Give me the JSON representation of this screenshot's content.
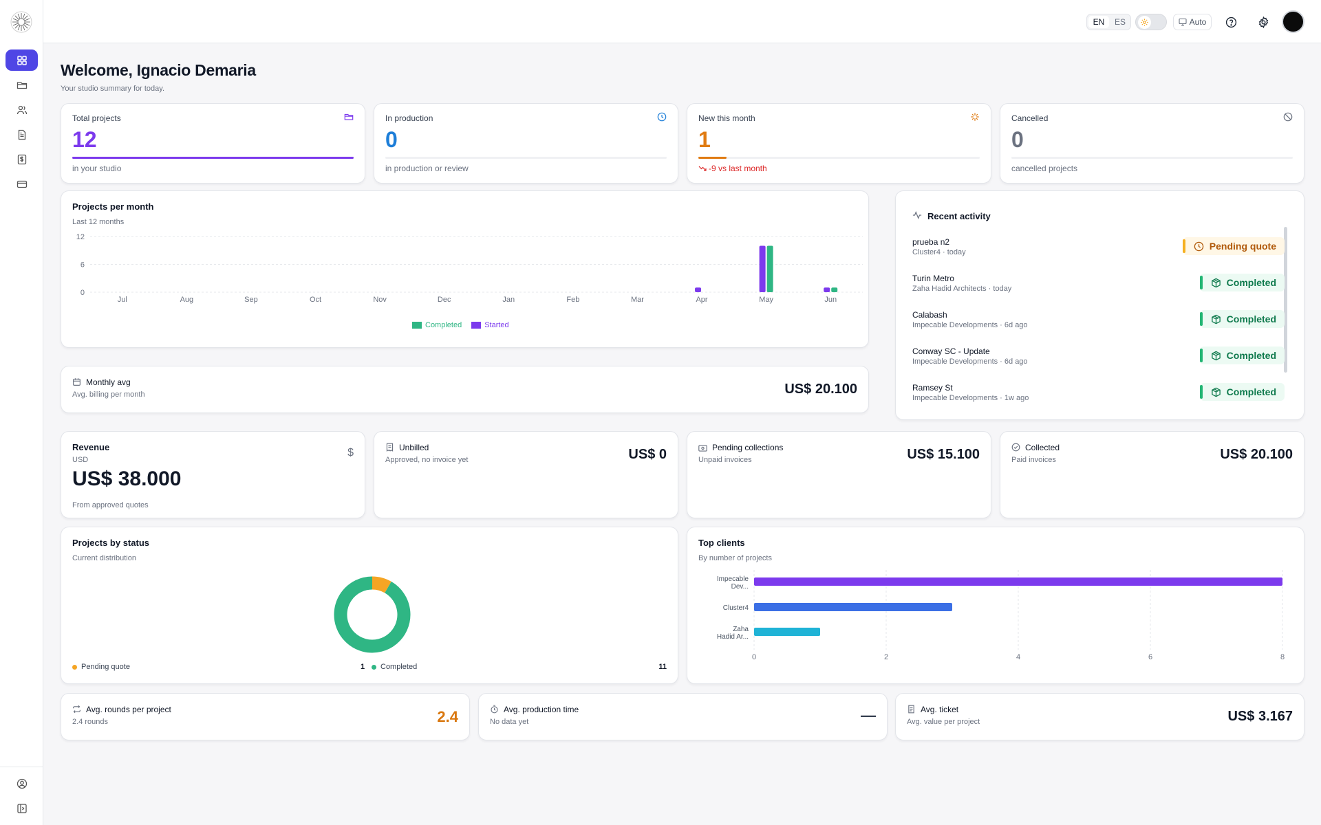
{
  "topbar": {
    "lang_en": "EN",
    "lang_es": "ES",
    "theme_auto": "Auto"
  },
  "header": {
    "title": "Welcome, Ignacio Demaria",
    "subtitle": "Your studio summary for today."
  },
  "stats": [
    {
      "label": "Total projects",
      "value": "12",
      "sub": "in your studio",
      "color": "#7c3aed",
      "fill": 1.0,
      "icon": "folder-icon"
    },
    {
      "label": "In production",
      "value": "0",
      "sub": "in production or review",
      "color": "#1d7ed8",
      "fill": 0.0,
      "icon": "clock-icon"
    },
    {
      "label": "New this month",
      "value": "1",
      "sub": "-9 vs last month",
      "color": "#e07b12",
      "fill": 0.1,
      "icon": "sparkle-icon"
    },
    {
      "label": "Cancelled",
      "value": "0",
      "sub": "cancelled projects",
      "color": "#6b7280",
      "fill": 0.0,
      "icon": "ban-icon"
    }
  ],
  "projects_per_month": {
    "title": "Projects per month",
    "subtitle": "Last 12 months",
    "legend_completed": "Completed",
    "legend_started": "Started"
  },
  "monthly_avg": {
    "title": "Monthly avg",
    "subtitle": "Avg. billing per month",
    "value": "US$ 20.100"
  },
  "recent_activity": {
    "title": "Recent activity",
    "items": [
      {
        "name": "prueba n2",
        "meta": "Cluster4 · today",
        "status": "Pending quote",
        "kind": "amber"
      },
      {
        "name": "Turin Metro",
        "meta": "Zaha Hadid Architects · today",
        "status": "Completed",
        "kind": "green"
      },
      {
        "name": "Calabash",
        "meta": "Impecable Developments · 6d ago",
        "status": "Completed",
        "kind": "green"
      },
      {
        "name": "Conway SC - Update",
        "meta": "Impecable Developments · 6d ago",
        "status": "Completed",
        "kind": "green"
      },
      {
        "name": "Ramsey St",
        "meta": "Impecable Developments · 1w ago",
        "status": "Completed",
        "kind": "green"
      }
    ]
  },
  "revenue": {
    "title": "Revenue",
    "currency": "USD",
    "value": "US$ 38.000",
    "sub": "From approved quotes"
  },
  "money_cards": [
    {
      "title": "Unbilled",
      "sub": "Approved, no invoice yet",
      "value": "US$ 0",
      "icon": "receipt-icon"
    },
    {
      "title": "Pending collections",
      "sub": "Unpaid invoices",
      "value": "US$ 15.100",
      "icon": "banknote-icon"
    },
    {
      "title": "Collected",
      "sub": "Paid invoices",
      "value": "US$ 20.100",
      "icon": "check-circle-icon"
    }
  ],
  "projects_by_status": {
    "title": "Projects by status",
    "subtitle": "Current distribution",
    "legend": [
      {
        "label": "Pending quote",
        "count": "1",
        "color": "#f5a524"
      },
      {
        "label": "Completed",
        "count": "11",
        "color": "#2fb684"
      }
    ]
  },
  "top_clients": {
    "title": "Top clients",
    "subtitle": "By number of projects"
  },
  "bottom_metrics": [
    {
      "title": "Avg. rounds per project",
      "sub": "2.4 rounds",
      "value": "2.4",
      "color": "#d9770e",
      "icon": "repeat-icon"
    },
    {
      "title": "Avg. production time",
      "sub": "No data yet",
      "value": "—",
      "color": "#374151",
      "icon": "timer-icon"
    },
    {
      "title": "Avg. ticket",
      "sub": "Avg. value per project",
      "value": "US$ 3.167",
      "color": "#111827",
      "icon": "document-icon"
    }
  ],
  "chart_data": [
    {
      "type": "bar",
      "title": "Projects per month",
      "subtitle": "Last 12 months",
      "categories": [
        "Jul",
        "Aug",
        "Sep",
        "Oct",
        "Nov",
        "Dec",
        "Jan",
        "Feb",
        "Mar",
        "Apr",
        "May",
        "Jun"
      ],
      "series": [
        {
          "name": "Started",
          "color": "#7c3aed",
          "values": [
            0,
            0,
            0,
            0,
            0,
            0,
            0,
            0,
            0,
            1,
            10,
            1
          ]
        },
        {
          "name": "Completed",
          "color": "#2fb684",
          "values": [
            0,
            0,
            0,
            0,
            0,
            0,
            0,
            0,
            0,
            0,
            10,
            1
          ]
        }
      ],
      "yticks": [
        0,
        6,
        12
      ],
      "ylim": [
        0,
        12
      ],
      "grid": true,
      "legend": "bottom-center"
    },
    {
      "type": "pie",
      "title": "Projects by status",
      "subtitle": "Current distribution",
      "slices": [
        {
          "label": "Pending quote",
          "value": 1,
          "color": "#f5a524"
        },
        {
          "label": "Completed",
          "value": 11,
          "color": "#2fb684"
        }
      ],
      "donut": true
    },
    {
      "type": "bar",
      "orientation": "horizontal",
      "title": "Top clients",
      "subtitle": "By number of projects",
      "categories": [
        "Impecable Dev...",
        "Cluster4",
        "Zaha Hadid Ar..."
      ],
      "values": [
        8,
        3,
        1
      ],
      "colors": [
        "#7c3aed",
        "#3b6fe5",
        "#1fb3d6"
      ],
      "xticks": [
        0,
        2,
        4,
        6,
        8
      ],
      "xlim": [
        0,
        8
      ],
      "grid": true
    }
  ]
}
